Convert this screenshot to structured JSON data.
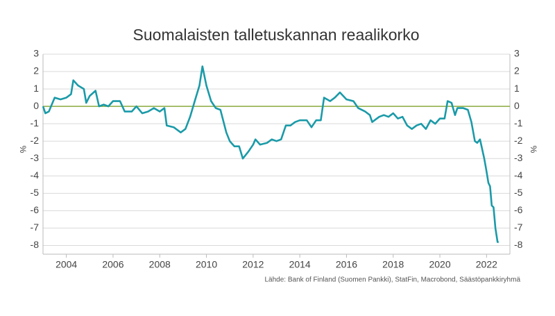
{
  "chart_data": {
    "type": "line",
    "title": "Suomalaisten talletuskannan reaalikorko",
    "source": "Lähde: Bank of Finland (Suomen Pankki), StatFin, Macrobond, Säästöpankkiryhmä",
    "y_label": "%",
    "y2_label": "%",
    "x": [
      2003.0,
      2003.1,
      2003.25,
      2003.5,
      2003.75,
      2004.0,
      2004.2,
      2004.3,
      2004.5,
      2004.75,
      2004.85,
      2005.0,
      2005.25,
      2005.4,
      2005.6,
      2005.8,
      2006.0,
      2006.3,
      2006.5,
      2006.8,
      2007.0,
      2007.25,
      2007.5,
      2007.75,
      2008.0,
      2008.2,
      2008.3,
      2008.6,
      2008.9,
      2009.1,
      2009.3,
      2009.5,
      2009.7,
      2009.83,
      2010.0,
      2010.2,
      2010.4,
      2010.6,
      2010.85,
      2011.0,
      2011.2,
      2011.4,
      2011.56,
      2011.8,
      2012.0,
      2012.1,
      2012.3,
      2012.6,
      2012.8,
      2013.0,
      2013.2,
      2013.4,
      2013.6,
      2013.8,
      2014.0,
      2014.3,
      2014.5,
      2014.7,
      2014.9,
      2015.04,
      2015.3,
      2015.5,
      2015.72,
      2016.0,
      2016.3,
      2016.5,
      2016.8,
      2017.0,
      2017.1,
      2017.4,
      2017.6,
      2017.8,
      2018.0,
      2018.2,
      2018.4,
      2018.6,
      2018.8,
      2019.0,
      2019.2,
      2019.4,
      2019.6,
      2019.8,
      2020.0,
      2020.2,
      2020.33,
      2020.5,
      2020.65,
      2020.75,
      2021.0,
      2021.2,
      2021.35,
      2021.5,
      2021.6,
      2021.72,
      2021.9,
      2021.98,
      2022.08,
      2022.15,
      2022.22,
      2022.3,
      2022.38,
      2022.47,
      2022.52
    ],
    "series": [
      {
        "name": "Reaalikorko",
        "color": "#1a9aa8",
        "values": [
          0.0,
          -0.4,
          -0.3,
          0.5,
          0.4,
          0.5,
          0.7,
          1.5,
          1.2,
          1.0,
          0.2,
          0.6,
          0.9,
          0.0,
          0.1,
          0.0,
          0.3,
          0.3,
          -0.3,
          -0.3,
          0.0,
          -0.4,
          -0.3,
          -0.1,
          -0.3,
          -0.1,
          -1.1,
          -1.2,
          -1.5,
          -1.3,
          -0.6,
          0.3,
          1.2,
          2.3,
          1.2,
          0.3,
          -0.1,
          -0.2,
          -1.5,
          -2.0,
          -2.3,
          -2.3,
          -3.0,
          -2.6,
          -2.2,
          -1.9,
          -2.2,
          -2.1,
          -1.9,
          -2.0,
          -1.9,
          -1.1,
          -1.1,
          -0.9,
          -0.8,
          -0.8,
          -1.2,
          -0.8,
          -0.8,
          0.5,
          0.3,
          0.5,
          0.8,
          0.4,
          0.3,
          -0.1,
          -0.3,
          -0.5,
          -0.9,
          -0.6,
          -0.5,
          -0.6,
          -0.4,
          -0.7,
          -0.6,
          -1.1,
          -1.3,
          -1.1,
          -1.0,
          -1.3,
          -0.8,
          -1.0,
          -0.7,
          -0.7,
          0.3,
          0.2,
          -0.5,
          -0.1,
          -0.1,
          -0.2,
          -0.9,
          -2.0,
          -2.1,
          -1.9,
          -3.0,
          -3.6,
          -4.4,
          -4.6,
          -5.7,
          -5.8,
          -7.0,
          -7.8,
          -7.8
        ]
      }
    ],
    "xlim": [
      2003,
      2023
    ],
    "xticks": [
      2004,
      2006,
      2008,
      2010,
      2012,
      2014,
      2016,
      2018,
      2020,
      2022
    ],
    "ylim": [
      -8.5,
      3
    ],
    "yticks": [
      3,
      2,
      1,
      0,
      -1,
      -2,
      -3,
      -4,
      -5,
      -6,
      -7,
      -8
    ],
    "y2lim": [
      -8.5,
      3
    ],
    "y2ticks": [
      3,
      2,
      1,
      0,
      -1,
      -2,
      -3,
      -4,
      -5,
      -6,
      -7,
      -8
    ],
    "zero_line": {
      "value": 0,
      "color": "#8aab3c"
    },
    "grid": true
  }
}
